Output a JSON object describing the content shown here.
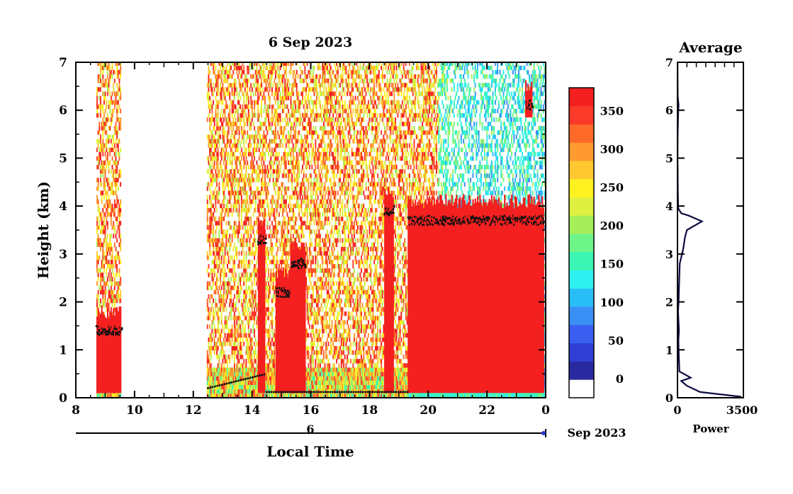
{
  "title": "6 Sep 2023",
  "chart_data": [
    {
      "type": "heatmap",
      "title": "6 Sep 2023",
      "xlabel": "Local Time",
      "ylabel": "Height (km)",
      "x_ticks": [
        "8",
        "10",
        "12",
        "14",
        "16",
        "18",
        "20",
        "22",
        "0"
      ],
      "y_ticks": [
        "0",
        "1",
        "2",
        "3",
        "4",
        "5",
        "6",
        "7"
      ],
      "xlim": [
        8,
        24
      ],
      "ylim": [
        0,
        7
      ],
      "date_axis": {
        "day_label": "6",
        "month_label": "Sep 2023"
      },
      "colorbar": {
        "ticks": [
          "0",
          "50",
          "100",
          "150",
          "200",
          "250",
          "300",
          "350"
        ],
        "range": [
          -25,
          380
        ],
        "colors": [
          "#ffffff",
          "#2a2aa0",
          "#2f3fd6",
          "#3a5ff0",
          "#3a8ff5",
          "#28bdf5",
          "#2ff0f0",
          "#3af5b4",
          "#6ef58a",
          "#a6ef5a",
          "#dff040",
          "#fff020",
          "#ffc830",
          "#ff9a30",
          "#ff6a2a",
          "#fb3a2a",
          "#f42020"
        ]
      },
      "no_data_gaps": [
        [
          9.5,
          12.45
        ]
      ],
      "cloud_layers": [
        {
          "start": 8.7,
          "end": 9.5,
          "base_km": 1.4
        },
        {
          "start": 14.2,
          "end": 14.4,
          "base_km": 3.3
        },
        {
          "start": 14.8,
          "end": 15.3,
          "base_km": 2.2
        },
        {
          "start": 15.3,
          "end": 15.8,
          "base_km": 2.8
        },
        {
          "start": 18.5,
          "end": 18.8,
          "base_km": 3.9
        },
        {
          "start": 19.3,
          "end": 23.9,
          "base_km": 3.7
        },
        {
          "start": 23.3,
          "end": 23.5,
          "base_km": 6.1
        }
      ]
    },
    {
      "type": "line",
      "title": "Average",
      "xlabel": "Power",
      "x_ticks": [
        "0",
        "3500"
      ],
      "y_ticks": [
        "0",
        "1",
        "2",
        "3",
        "4",
        "5",
        "6",
        "7"
      ],
      "xlim": [
        0,
        3500
      ],
      "ylim": [
        0,
        7
      ],
      "series": [
        {
          "x": [
            3400,
            1200,
            500,
            200,
            700,
            100,
            80,
            60,
            50,
            80,
            30,
            60,
            80,
            120,
            300,
            400,
            500,
            1300,
            600,
            200,
            40,
            20,
            10,
            5,
            10,
            40,
            60,
            10,
            5
          ],
          "y": [
            0.02,
            0.12,
            0.25,
            0.35,
            0.42,
            0.55,
            0.8,
            1.0,
            1.2,
            1.4,
            1.8,
            2.0,
            2.3,
            2.8,
            3.1,
            3.35,
            3.5,
            3.68,
            3.8,
            3.85,
            3.95,
            4.3,
            4.7,
            5.0,
            5.5,
            6.0,
            6.1,
            6.3,
            7.0
          ]
        }
      ]
    }
  ]
}
